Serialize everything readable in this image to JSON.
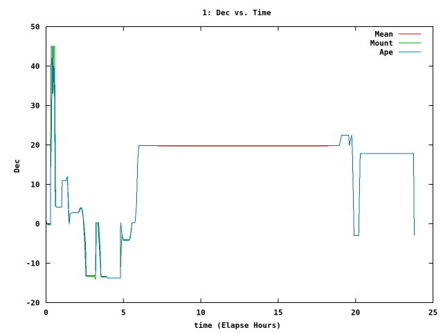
{
  "chart_data": {
    "type": "line",
    "title": "1: Dec vs. Time",
    "xlabel": "time (Elapse Hours)",
    "ylabel": "Dec",
    "xlim": [
      0,
      25
    ],
    "ylim": [
      -20,
      50
    ],
    "xticks": [
      0,
      5,
      10,
      15,
      20,
      25
    ],
    "yticks": [
      -20,
      -10,
      0,
      10,
      20,
      30,
      40,
      50
    ],
    "grid": false,
    "legend_position": "top-right",
    "series": [
      {
        "name": "Mean",
        "color": "#cc0000",
        "points": [
          [
            7.25,
            19.7
          ],
          [
            18.25,
            19.7
          ]
        ]
      },
      {
        "name": "Mount",
        "color": "#00a000",
        "points": [
          [
            0.0,
            0.5
          ],
          [
            0.1,
            -0.2
          ],
          [
            0.2,
            -0.3
          ],
          [
            0.3,
            -0.2
          ],
          [
            0.3,
            22
          ],
          [
            0.33,
            45
          ],
          [
            0.42,
            45
          ],
          [
            0.42,
            33
          ],
          [
            0.5,
            45
          ],
          [
            0.55,
            45
          ],
          [
            0.58,
            30
          ],
          [
            0.62,
            4.5
          ],
          [
            0.7,
            4.2
          ],
          [
            1.0,
            4.2
          ],
          [
            1.05,
            11
          ],
          [
            1.3,
            11
          ],
          [
            1.38,
            12
          ],
          [
            1.45,
            5
          ],
          [
            1.5,
            0
          ],
          [
            1.55,
            2.5
          ],
          [
            1.65,
            2.8
          ],
          [
            2.1,
            2.8
          ],
          [
            2.25,
            4
          ],
          [
            2.35,
            3.5
          ],
          [
            2.45,
            0
          ],
          [
            2.55,
            -5
          ],
          [
            2.6,
            -13.3
          ],
          [
            3.1,
            -13.3
          ],
          [
            3.2,
            -14
          ],
          [
            3.25,
            0.3
          ],
          [
            3.4,
            0.3
          ],
          [
            3.5,
            -7
          ],
          [
            3.55,
            -13.3
          ],
          [
            3.85,
            -13.3
          ],
          [
            4.0,
            -13.8
          ],
          [
            4.2,
            -13.8
          ],
          [
            4.8,
            -13.8
          ],
          [
            4.85,
            -7
          ],
          [
            4.9,
            -3
          ],
          [
            5.0,
            -4
          ],
          [
            5.4,
            -4
          ],
          [
            5.5,
            -2
          ],
          [
            5.55,
            0.3
          ],
          [
            5.75,
            0.3
          ],
          [
            5.85,
            5
          ],
          [
            5.92,
            16
          ],
          [
            6.0,
            19.8
          ],
          [
            7.25,
            19.8
          ]
        ]
      },
      {
        "name": "Ape",
        "color": "#0070c0",
        "points": [
          [
            0.0,
            0.7
          ],
          [
            0.1,
            -0.2
          ],
          [
            0.3,
            -0.1
          ],
          [
            0.3,
            14
          ],
          [
            0.35,
            22
          ],
          [
            0.4,
            45
          ],
          [
            0.45,
            33
          ],
          [
            0.5,
            40
          ],
          [
            0.55,
            32
          ],
          [
            0.6,
            4.5
          ],
          [
            0.7,
            4.2
          ],
          [
            1.0,
            4.2
          ],
          [
            1.05,
            11
          ],
          [
            1.3,
            11
          ],
          [
            1.38,
            12
          ],
          [
            1.45,
            3
          ],
          [
            1.5,
            -0.2
          ],
          [
            1.55,
            2.5
          ],
          [
            1.65,
            2.8
          ],
          [
            2.1,
            2.8
          ],
          [
            2.2,
            4
          ],
          [
            2.3,
            4
          ],
          [
            2.4,
            1.5
          ],
          [
            2.5,
            -5
          ],
          [
            2.58,
            -13.2
          ],
          [
            2.9,
            -13.2
          ],
          [
            3.1,
            -13.2
          ],
          [
            3.2,
            -13
          ],
          [
            3.22,
            0.3
          ],
          [
            3.35,
            0.3
          ],
          [
            3.45,
            -6
          ],
          [
            3.55,
            -13.5
          ],
          [
            3.9,
            -13.5
          ],
          [
            4.0,
            -13.8
          ],
          [
            4.6,
            -13.8
          ],
          [
            4.8,
            -13.8
          ],
          [
            4.82,
            0.3
          ],
          [
            4.92,
            -3
          ],
          [
            5.0,
            -4.2
          ],
          [
            5.35,
            -4.2
          ],
          [
            5.45,
            -3.5
          ],
          [
            5.55,
            0.3
          ],
          [
            5.75,
            0.3
          ],
          [
            5.85,
            5
          ],
          [
            5.92,
            16
          ],
          [
            6.0,
            19.8
          ],
          [
            18.25,
            19.8
          ],
          [
            18.95,
            19.8
          ],
          [
            19.1,
            22.5
          ],
          [
            19.55,
            22.5
          ],
          [
            19.6,
            19.8
          ],
          [
            19.65,
            21
          ],
          [
            19.75,
            22.5
          ],
          [
            19.8,
            18
          ],
          [
            19.9,
            -3
          ],
          [
            20.2,
            -3
          ],
          [
            20.3,
            17.8
          ],
          [
            23.7,
            17.8
          ],
          [
            23.75,
            17.8
          ],
          [
            23.78,
            2
          ],
          [
            23.8,
            -3
          ]
        ]
      }
    ]
  }
}
